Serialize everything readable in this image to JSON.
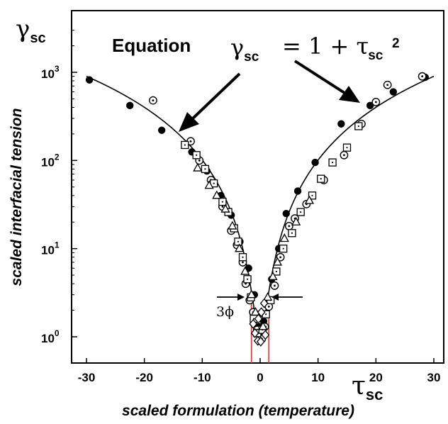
{
  "chart_data": {
    "type": "scatter",
    "xlabel": "scaled formulation (temperature)",
    "ylabel": "scaled interfacial tension",
    "x_symbol": "τ",
    "x_symbol_sub": "sc",
    "y_symbol": "γ",
    "y_symbol_sub": "sc",
    "xlim": [
      -30,
      30
    ],
    "ylim_log10": [
      -0.2,
      3.55
    ],
    "y_scale": "log",
    "xticks": [
      {
        "value": -30,
        "label": "-30"
      },
      {
        "value": -20,
        "label": "-20"
      },
      {
        "value": -10,
        "label": "-10"
      },
      {
        "value": 0,
        "label": "0"
      },
      {
        "value": 10,
        "label": "10"
      },
      {
        "value": 20,
        "label": "20"
      },
      {
        "value": 30,
        "label": "30"
      }
    ],
    "yticks": [
      {
        "value": 1,
        "base": "10",
        "exp": "0"
      },
      {
        "value": 10,
        "base": "10",
        "exp": "1"
      },
      {
        "value": 100,
        "base": "10",
        "exp": "2"
      },
      {
        "value": 1000,
        "base": "10",
        "exp": "3"
      }
    ],
    "grid": false,
    "legend": "none",
    "annotations": {
      "equation_word": "Equation",
      "equation_lhs": "γ",
      "equation_lhs_sub": "sc",
      "equation_rhs": "= 1 + τ",
      "equation_rhs_sub": "sc",
      "equation_rhs_sup": "2",
      "band_label": "3ϕ",
      "band_x": [
        -1.5,
        1.5
      ]
    },
    "curve": {
      "name": "",
      "formula": "γ = 1 + τ²",
      "x_range": [
        -30,
        30
      ]
    },
    "series": [
      {
        "marker": "filled-circle",
        "points": [
          [
            -29.5,
            820
          ],
          [
            -22.5,
            420
          ],
          [
            -17,
            220
          ],
          [
            -11.8,
            125
          ],
          [
            -9.2,
            76
          ],
          [
            -6.8,
            40
          ],
          [
            -5,
            24
          ],
          [
            -3.5,
            12
          ],
          [
            -2,
            6
          ],
          [
            -1,
            3
          ],
          [
            -0.6,
            1.8
          ],
          [
            -0.2,
            1.3
          ],
          [
            0.2,
            1.1
          ],
          [
            0.6,
            1.5
          ],
          [
            1.2,
            2.5
          ],
          [
            2,
            4.5
          ],
          [
            3.2,
            10
          ],
          [
            4.5,
            25
          ],
          [
            6.5,
            45
          ],
          [
            9.5,
            95
          ],
          [
            14,
            260
          ],
          [
            19,
            420
          ],
          [
            23,
            600
          ],
          [
            28.5,
            880
          ]
        ]
      },
      {
        "marker": "circle-dot",
        "points": [
          [
            -18.5,
            480
          ],
          [
            -12,
            165
          ],
          [
            -10.5,
            100
          ],
          [
            -8.5,
            60
          ],
          [
            -6.5,
            30
          ],
          [
            -5,
            16
          ],
          [
            -4,
            11
          ],
          [
            -3,
            7
          ],
          [
            -2.5,
            4
          ],
          [
            -1.8,
            2.6
          ],
          [
            -1.2,
            1.9
          ],
          [
            -0.5,
            1.2
          ],
          [
            0.3,
            0.95
          ],
          [
            0.8,
            1.3
          ],
          [
            1.5,
            2.2
          ],
          [
            2.5,
            3.8
          ],
          [
            3.5,
            8
          ],
          [
            5,
            18
          ],
          [
            6,
            22
          ],
          [
            8,
            32
          ],
          [
            11,
            60
          ],
          [
            14.5,
            115
          ],
          [
            17.5,
            260
          ],
          [
            20,
            460
          ],
          [
            22,
            720
          ],
          [
            28,
            900
          ]
        ]
      },
      {
        "marker": "square-dot",
        "points": [
          [
            -13,
            150
          ],
          [
            -11,
            115
          ],
          [
            -9.5,
            80
          ],
          [
            -8,
            55
          ],
          [
            -6.5,
            34
          ],
          [
            -5.5,
            26
          ],
          [
            -4.5,
            17
          ],
          [
            -3.8,
            12
          ],
          [
            -3,
            8
          ],
          [
            -2.2,
            4.5
          ],
          [
            -1.6,
            2.8
          ],
          [
            -1.1,
            1.6
          ],
          [
            -0.5,
            1.1
          ],
          [
            0.4,
            1.2
          ],
          [
            1,
            1.8
          ],
          [
            1.8,
            2.6
          ],
          [
            2.8,
            5.5
          ],
          [
            4,
            10
          ],
          [
            5.5,
            15
          ],
          [
            7,
            26
          ],
          [
            9,
            40
          ],
          [
            10.5,
            62
          ],
          [
            12.5,
            95
          ],
          [
            15,
            140
          ],
          [
            17,
            245
          ]
        ]
      },
      {
        "marker": "triangle",
        "points": [
          [
            -10.8,
            82
          ],
          [
            -8.8,
            52
          ],
          [
            -7.5,
            40
          ],
          [
            -6,
            28
          ],
          [
            -4.8,
            18
          ],
          [
            -3.6,
            10
          ],
          [
            -2.6,
            5.5
          ],
          [
            -1.5,
            3
          ],
          [
            -0.8,
            1.9
          ],
          [
            0.5,
            1.3
          ],
          [
            1.3,
            2.8
          ],
          [
            2.2,
            4.8
          ],
          [
            3,
            7
          ],
          [
            4.2,
            13
          ],
          [
            6.2,
            20
          ],
          [
            8.5,
            35
          ]
        ]
      },
      {
        "marker": "diamond",
        "points": [
          [
            -0.9,
            1.1
          ],
          [
            -0.4,
            0.9
          ],
          [
            0.1,
            0.88
          ],
          [
            -1.2,
            1.4
          ],
          [
            0.9,
            1.05
          ],
          [
            -0.3,
            1.6
          ],
          [
            0.2,
            1.9
          ],
          [
            0.7,
            2.4
          ]
        ]
      }
    ]
  }
}
